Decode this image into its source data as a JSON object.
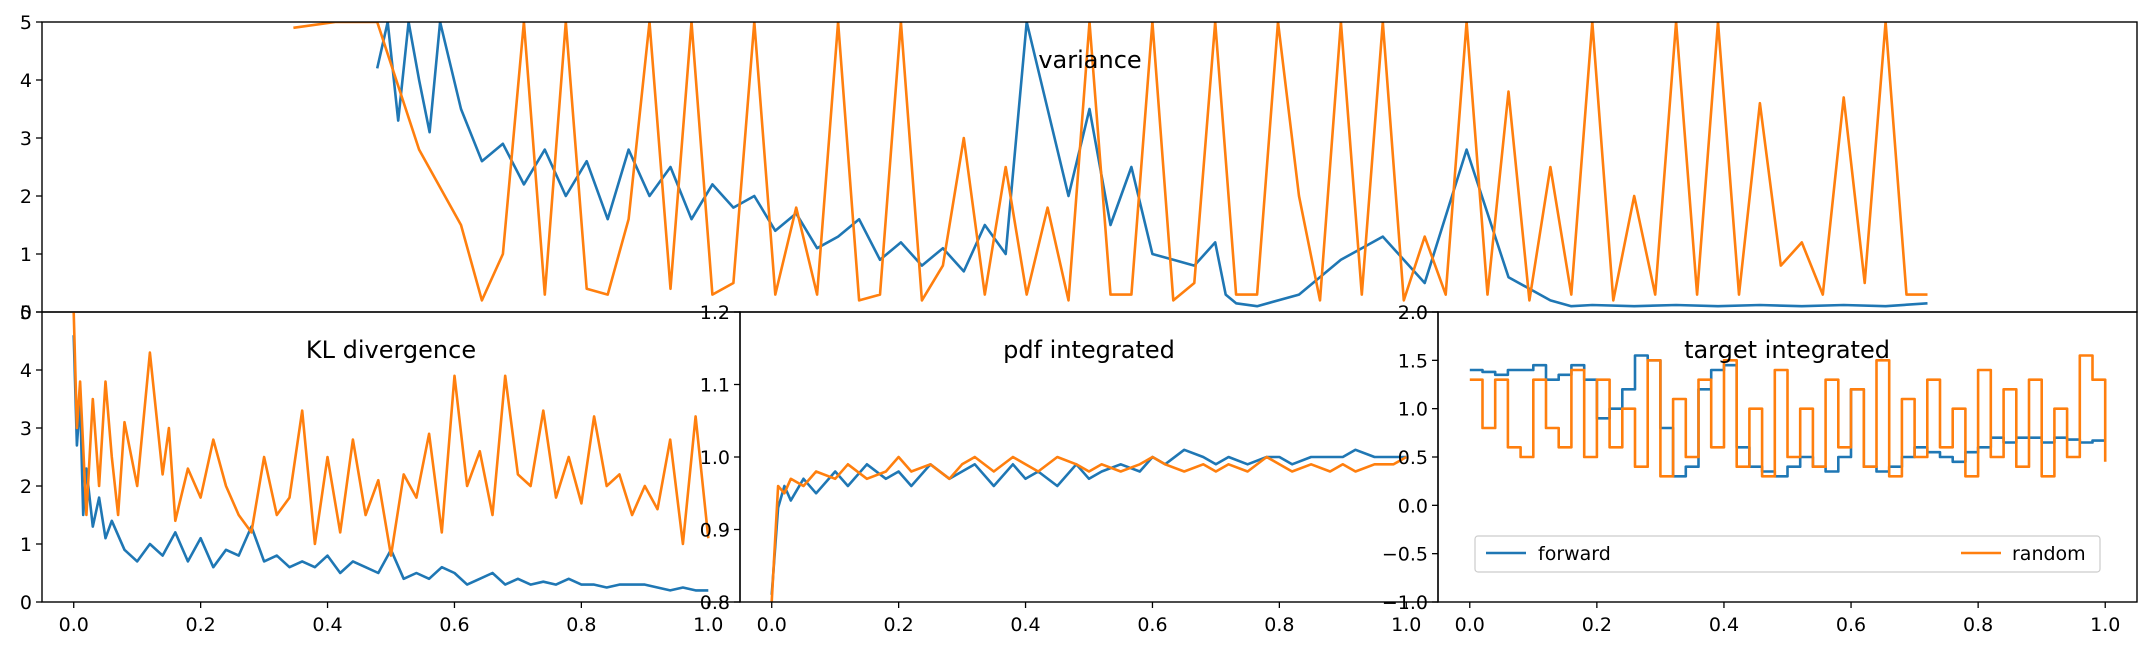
{
  "colors": {
    "forward": "#1f77b4",
    "random": "#ff7f0e"
  },
  "chart_data": [
    {
      "id": "variance",
      "type": "line",
      "title": "variance",
      "xlim": [
        0,
        1
      ],
      "ylim": [
        0,
        5
      ],
      "yticks": [
        "0",
        "1",
        "2",
        "3",
        "4",
        "5"
      ],
      "xticks": [],
      "grid": false,
      "series": [
        {
          "key": "forward",
          "x": [
            0.16,
            0.165,
            0.17,
            0.175,
            0.18,
            0.185,
            0.19,
            0.2,
            0.21,
            0.22,
            0.23,
            0.24,
            0.25,
            0.26,
            0.27,
            0.28,
            0.29,
            0.3,
            0.31,
            0.32,
            0.33,
            0.34,
            0.35,
            0.36,
            0.37,
            0.38,
            0.39,
            0.4,
            0.41,
            0.42,
            0.43,
            0.44,
            0.45,
            0.46,
            0.47,
            0.48,
            0.49,
            0.5,
            0.51,
            0.52,
            0.53,
            0.54,
            0.55,
            0.56,
            0.565,
            0.57,
            0.58,
            0.6,
            0.62,
            0.64,
            0.66,
            0.68,
            0.7,
            0.72,
            0.73,
            0.74,
            0.76,
            0.78,
            0.8,
            0.82,
            0.84,
            0.86,
            0.88,
            0.9
          ],
          "y": [
            4.2,
            5,
            3.3,
            5,
            4.0,
            3.1,
            5,
            3.5,
            2.6,
            2.9,
            2.2,
            2.8,
            2.0,
            2.6,
            1.6,
            2.8,
            2.0,
            2.5,
            1.6,
            2.2,
            1.8,
            2.0,
            1.4,
            1.7,
            1.1,
            1.3,
            1.6,
            0.9,
            1.2,
            0.8,
            1.1,
            0.7,
            1.5,
            1.0,
            5,
            3.5,
            2.0,
            3.5,
            1.5,
            2.5,
            1.0,
            0.9,
            0.8,
            1.2,
            0.3,
            0.15,
            0.1,
            0.3,
            0.9,
            1.3,
            0.5,
            2.8,
            0.6,
            0.2,
            0.1,
            0.12,
            0.1,
            0.12,
            0.1,
            0.12,
            0.1,
            0.12,
            0.1,
            0.15
          ]
        },
        {
          "key": "random",
          "x": [
            0.12,
            0.14,
            0.16,
            0.18,
            0.2,
            0.21,
            0.22,
            0.23,
            0.24,
            0.25,
            0.26,
            0.27,
            0.28,
            0.29,
            0.3,
            0.31,
            0.32,
            0.33,
            0.34,
            0.35,
            0.36,
            0.37,
            0.38,
            0.39,
            0.4,
            0.41,
            0.42,
            0.43,
            0.44,
            0.45,
            0.46,
            0.47,
            0.48,
            0.49,
            0.5,
            0.51,
            0.52,
            0.53,
            0.54,
            0.55,
            0.56,
            0.57,
            0.58,
            0.59,
            0.6,
            0.61,
            0.62,
            0.63,
            0.64,
            0.65,
            0.66,
            0.67,
            0.68,
            0.69,
            0.7,
            0.71,
            0.72,
            0.73,
            0.74,
            0.75,
            0.76,
            0.77,
            0.78,
            0.79,
            0.8,
            0.81,
            0.82,
            0.83,
            0.84,
            0.85,
            0.86,
            0.87,
            0.88,
            0.89,
            0.9
          ],
          "y": [
            4.9,
            5,
            5,
            2.8,
            1.5,
            0.2,
            1.0,
            5,
            0.3,
            5,
            0.4,
            0.3,
            1.6,
            5,
            0.4,
            5,
            0.3,
            0.5,
            5,
            0.3,
            1.8,
            0.3,
            5,
            0.2,
            0.3,
            5,
            0.2,
            0.8,
            3.0,
            0.3,
            2.5,
            0.3,
            1.8,
            0.2,
            5,
            0.3,
            0.3,
            5,
            0.2,
            0.5,
            5,
            0.3,
            0.3,
            5,
            2.0,
            0.2,
            5,
            0.3,
            5,
            0.2,
            1.3,
            0.3,
            5,
            0.3,
            3.8,
            0.2,
            2.5,
            0.3,
            5,
            0.2,
            2.0,
            0.3,
            5,
            0.3,
            5,
            0.3,
            3.6,
            0.8,
            1.2,
            0.3,
            3.7,
            0.5,
            5,
            0.3,
            0.3
          ]
        }
      ]
    },
    {
      "id": "kl",
      "type": "line",
      "title": "KL divergence",
      "xlim": [
        -0.05,
        1.05
      ],
      "ylim": [
        0,
        5
      ],
      "yticks": [
        "0",
        "1",
        "2",
        "3",
        "4",
        "5"
      ],
      "xticks": [
        "0.0",
        "0.2",
        "0.4",
        "0.6",
        "0.8",
        "1.0"
      ],
      "grid": false,
      "series": [
        {
          "key": "forward",
          "x": [
            0.0,
            0.005,
            0.01,
            0.015,
            0.02,
            0.03,
            0.04,
            0.05,
            0.06,
            0.08,
            0.1,
            0.12,
            0.14,
            0.16,
            0.18,
            0.2,
            0.22,
            0.24,
            0.26,
            0.28,
            0.3,
            0.32,
            0.34,
            0.36,
            0.38,
            0.4,
            0.42,
            0.44,
            0.46,
            0.48,
            0.5,
            0.52,
            0.54,
            0.56,
            0.58,
            0.6,
            0.62,
            0.64,
            0.66,
            0.68,
            0.7,
            0.72,
            0.74,
            0.76,
            0.78,
            0.8,
            0.82,
            0.84,
            0.86,
            0.88,
            0.9,
            0.92,
            0.94,
            0.96,
            0.98,
            1.0
          ],
          "y": [
            4.6,
            2.7,
            3.5,
            1.5,
            2.3,
            1.3,
            1.8,
            1.1,
            1.4,
            0.9,
            0.7,
            1.0,
            0.8,
            1.2,
            0.7,
            1.1,
            0.6,
            0.9,
            0.8,
            1.3,
            0.7,
            0.8,
            0.6,
            0.7,
            0.6,
            0.8,
            0.5,
            0.7,
            0.6,
            0.5,
            0.9,
            0.4,
            0.5,
            0.4,
            0.6,
            0.5,
            0.3,
            0.4,
            0.5,
            0.3,
            0.4,
            0.3,
            0.35,
            0.3,
            0.4,
            0.3,
            0.3,
            0.25,
            0.3,
            0.3,
            0.3,
            0.25,
            0.2,
            0.25,
            0.2,
            0.2
          ]
        },
        {
          "key": "random",
          "x": [
            0.0,
            0.005,
            0.01,
            0.02,
            0.03,
            0.04,
            0.05,
            0.06,
            0.07,
            0.08,
            0.1,
            0.12,
            0.14,
            0.15,
            0.16,
            0.18,
            0.2,
            0.22,
            0.24,
            0.26,
            0.28,
            0.3,
            0.32,
            0.34,
            0.36,
            0.38,
            0.4,
            0.42,
            0.44,
            0.46,
            0.48,
            0.5,
            0.52,
            0.54,
            0.56,
            0.58,
            0.6,
            0.62,
            0.64,
            0.66,
            0.68,
            0.7,
            0.72,
            0.74,
            0.76,
            0.78,
            0.8,
            0.82,
            0.84,
            0.86,
            0.88,
            0.9,
            0.92,
            0.94,
            0.96,
            0.98,
            1.0
          ],
          "y": [
            5,
            3.0,
            3.8,
            1.5,
            3.5,
            2.0,
            3.8,
            2.5,
            1.5,
            3.1,
            2.0,
            4.3,
            2.2,
            3.0,
            1.4,
            2.3,
            1.8,
            2.8,
            2.0,
            1.5,
            1.2,
            2.5,
            1.5,
            1.8,
            3.3,
            1.0,
            2.5,
            1.2,
            2.8,
            1.5,
            2.1,
            0.8,
            2.2,
            1.8,
            2.9,
            1.2,
            3.9,
            2.0,
            2.6,
            1.5,
            3.9,
            2.2,
            2.0,
            3.3,
            1.8,
            2.5,
            1.7,
            3.2,
            2.0,
            2.2,
            1.5,
            2.0,
            1.6,
            2.8,
            1.0,
            3.2,
            1.1
          ]
        }
      ]
    },
    {
      "id": "pdf",
      "type": "line",
      "title": "pdf integrated",
      "xlim": [
        -0.05,
        1.05
      ],
      "ylim": [
        0.8,
        1.2
      ],
      "yticks": [
        "0.8",
        "0.9",
        "1.0",
        "1.1",
        "1.2"
      ],
      "xticks": [
        "0.0",
        "0.2",
        "0.4",
        "0.6",
        "0.8",
        "1.0"
      ],
      "grid": false,
      "series": [
        {
          "key": "forward",
          "x": [
            0.0,
            0.01,
            0.02,
            0.03,
            0.05,
            0.07,
            0.1,
            0.12,
            0.15,
            0.18,
            0.2,
            0.22,
            0.25,
            0.28,
            0.3,
            0.32,
            0.35,
            0.38,
            0.4,
            0.42,
            0.45,
            0.48,
            0.5,
            0.52,
            0.55,
            0.58,
            0.6,
            0.62,
            0.65,
            0.68,
            0.7,
            0.72,
            0.75,
            0.78,
            0.8,
            0.82,
            0.85,
            0.88,
            0.9,
            0.92,
            0.95,
            0.98,
            1.0
          ],
          "y": [
            0.81,
            0.93,
            0.96,
            0.94,
            0.97,
            0.95,
            0.98,
            0.96,
            0.99,
            0.97,
            0.98,
            0.96,
            0.99,
            0.97,
            0.98,
            0.99,
            0.96,
            0.99,
            0.97,
            0.98,
            0.96,
            0.99,
            0.97,
            0.98,
            0.99,
            0.98,
            1.0,
            0.99,
            1.01,
            1.0,
            0.99,
            1.0,
            0.99,
            1.0,
            1.0,
            0.99,
            1.0,
            1.0,
            1.0,
            1.01,
            1.0,
            1.0,
            1.0
          ]
        },
        {
          "key": "random",
          "x": [
            0.0,
            0.01,
            0.02,
            0.03,
            0.05,
            0.07,
            0.1,
            0.12,
            0.15,
            0.18,
            0.2,
            0.22,
            0.25,
            0.28,
            0.3,
            0.32,
            0.35,
            0.38,
            0.4,
            0.42,
            0.45,
            0.48,
            0.5,
            0.52,
            0.55,
            0.58,
            0.6,
            0.62,
            0.65,
            0.68,
            0.7,
            0.72,
            0.75,
            0.78,
            0.8,
            0.82,
            0.85,
            0.88,
            0.9,
            0.92,
            0.95,
            0.98,
            1.0
          ],
          "y": [
            0.8,
            0.96,
            0.95,
            0.97,
            0.96,
            0.98,
            0.97,
            0.99,
            0.97,
            0.98,
            1.0,
            0.98,
            0.99,
            0.97,
            0.99,
            1.0,
            0.98,
            1.0,
            0.99,
            0.98,
            1.0,
            0.99,
            0.98,
            0.99,
            0.98,
            0.99,
            1.0,
            0.99,
            0.98,
            0.99,
            0.98,
            0.99,
            0.98,
            1.0,
            0.99,
            0.98,
            0.99,
            0.98,
            0.99,
            0.98,
            0.99,
            0.99,
            1.0
          ]
        }
      ]
    },
    {
      "id": "target",
      "type": "line",
      "title": "target integrated",
      "xlim": [
        -0.05,
        1.05
      ],
      "ylim": [
        -1.0,
        2.0
      ],
      "yticks": [
        "−1.0",
        "−0.5",
        "0.0",
        "0.5",
        "1.0",
        "1.5",
        "2.0"
      ],
      "xticks": [
        "0.0",
        "0.2",
        "0.4",
        "0.6",
        "0.8",
        "1.0"
      ],
      "grid": false,
      "legend": {
        "placement": "lower",
        "entries": [
          {
            "key": "forward",
            "label": "forward"
          },
          {
            "key": "random",
            "label": "random"
          }
        ]
      },
      "series": [
        {
          "key": "forward",
          "step": true,
          "x": [
            0.0,
            0.02,
            0.04,
            0.06,
            0.08,
            0.1,
            0.12,
            0.14,
            0.16,
            0.18,
            0.2,
            0.22,
            0.24,
            0.26,
            0.28,
            0.3,
            0.32,
            0.34,
            0.36,
            0.38,
            0.4,
            0.42,
            0.44,
            0.46,
            0.48,
            0.5,
            0.52,
            0.54,
            0.56,
            0.58,
            0.6,
            0.62,
            0.64,
            0.66,
            0.68,
            0.7,
            0.72,
            0.74,
            0.76,
            0.78,
            0.8,
            0.82,
            0.84,
            0.86,
            0.88,
            0.9,
            0.92,
            0.94,
            0.96,
            0.98,
            1.0
          ],
          "y": [
            1.4,
            1.38,
            1.35,
            1.4,
            1.4,
            1.45,
            1.3,
            1.35,
            1.45,
            1.3,
            0.9,
            1.0,
            1.2,
            1.55,
            1.5,
            0.8,
            0.3,
            0.4,
            1.2,
            1.4,
            1.45,
            0.6,
            0.4,
            0.35,
            0.3,
            0.4,
            0.5,
            0.4,
            0.35,
            0.5,
            1.2,
            0.4,
            0.35,
            0.4,
            0.5,
            0.6,
            0.55,
            0.5,
            0.45,
            0.55,
            0.6,
            0.7,
            0.65,
            0.7,
            0.7,
            0.65,
            0.7,
            0.68,
            0.65,
            0.67,
            0.67
          ]
        },
        {
          "key": "random",
          "step": true,
          "x": [
            0.0,
            0.02,
            0.04,
            0.06,
            0.08,
            0.1,
            0.12,
            0.14,
            0.16,
            0.18,
            0.2,
            0.22,
            0.24,
            0.26,
            0.28,
            0.3,
            0.32,
            0.34,
            0.36,
            0.38,
            0.4,
            0.42,
            0.44,
            0.46,
            0.48,
            0.5,
            0.52,
            0.54,
            0.56,
            0.58,
            0.6,
            0.62,
            0.64,
            0.66,
            0.68,
            0.7,
            0.72,
            0.74,
            0.76,
            0.78,
            0.8,
            0.82,
            0.84,
            0.86,
            0.88,
            0.9,
            0.92,
            0.94,
            0.96,
            0.98,
            1.0
          ],
          "y": [
            1.3,
            0.8,
            1.3,
            0.6,
            0.5,
            1.3,
            0.8,
            0.6,
            1.4,
            0.5,
            1.3,
            0.6,
            1.0,
            0.4,
            1.5,
            0.3,
            1.1,
            0.5,
            1.3,
            0.6,
            1.5,
            0.4,
            1.0,
            0.3,
            1.4,
            0.5,
            1.0,
            0.4,
            1.3,
            0.6,
            1.2,
            0.4,
            1.5,
            0.3,
            1.1,
            0.5,
            1.3,
            0.6,
            1.0,
            0.3,
            1.4,
            0.5,
            1.2,
            0.4,
            1.3,
            0.3,
            1.0,
            0.5,
            1.55,
            1.3,
            0.45
          ]
        }
      ]
    }
  ]
}
